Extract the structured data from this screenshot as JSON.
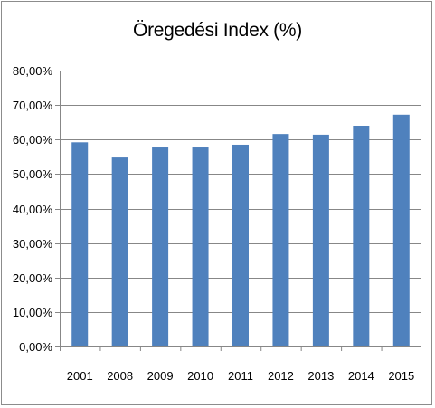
{
  "chart_data": {
    "type": "bar",
    "title": "Öregedési Index (%)",
    "xlabel": "",
    "ylabel": "",
    "categories": [
      "2001",
      "2008",
      "2009",
      "2010",
      "2011",
      "2012",
      "2013",
      "2014",
      "2015"
    ],
    "series": [
      {
        "values": [
          59.2,
          54.8,
          57.7,
          57.7,
          58.5,
          61.6,
          61.4,
          64.0,
          67.2
        ]
      }
    ],
    "ylim": [
      0,
      80
    ],
    "yticks": [
      0,
      10,
      20,
      30,
      40,
      50,
      60,
      70,
      80
    ],
    "ytick_labels": [
      "0,00%",
      "10,00%",
      "20,00%",
      "30,00%",
      "40,00%",
      "50,00%",
      "60,00%",
      "70,00%",
      "80,00%"
    ],
    "grid": true,
    "legend": "none",
    "colors": {
      "bar": "#4f81bd",
      "grid": "#878787",
      "axis": "#878787"
    }
  }
}
